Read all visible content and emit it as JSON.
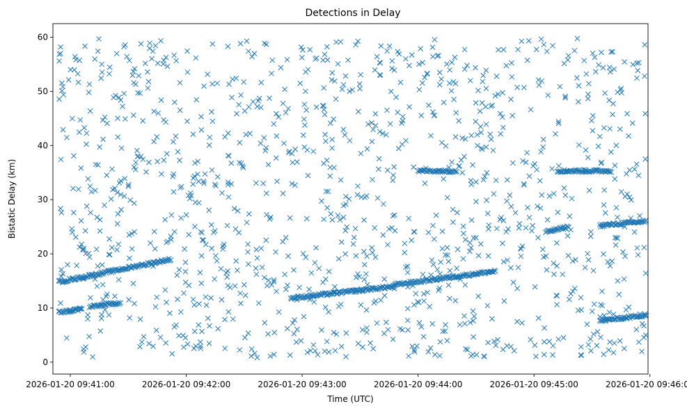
{
  "chart_data": {
    "type": "scatter",
    "title": "Detections in Delay",
    "xlabel": "Time (UTC)",
    "ylabel": "Bistatic Delay (km)",
    "marker": "x",
    "color": "#1f77b4",
    "grid": false,
    "legend": "none",
    "xlim": [
      "2026-01-20 09:40:51",
      "2026-01-20 09:45:59"
    ],
    "ylim": [
      -2.2,
      62.5
    ],
    "xticks": [
      "2026-01-20 09:41:00",
      "2026-01-20 09:42:00",
      "2026-01-20 09:43:00",
      "2026-01-20 09:44:00",
      "2026-01-20 09:45:00",
      "2026-01-20 09:46:00"
    ],
    "yticks": [
      0,
      10,
      20,
      30,
      40,
      50,
      60
    ],
    "tracks": [
      {
        "x": [
          "2026-01-20 09:40:54",
          "2026-01-20 09:41:52"
        ],
        "y": [
          14.8,
          19.0
        ]
      },
      {
        "x": [
          "2026-01-20 09:42:54",
          "2026-01-20 09:43:48"
        ],
        "y": [
          11.8,
          14.0
        ]
      },
      {
        "x": [
          "2026-01-20 09:43:48",
          "2026-01-20 09:44:40"
        ],
        "y": [
          14.3,
          16.8
        ]
      },
      {
        "x": [
          "2026-01-20 09:45:06",
          "2026-01-20 09:45:18"
        ],
        "y": [
          24.0,
          25.0
        ]
      },
      {
        "x": [
          "2026-01-20 09:45:34",
          "2026-01-20 09:45:58"
        ],
        "y": [
          25.2,
          26.0
        ]
      },
      {
        "x": [
          "2026-01-20 09:40:54",
          "2026-01-20 09:41:06"
        ],
        "y": [
          9.2,
          9.8
        ]
      },
      {
        "x": [
          "2026-01-20 09:41:10",
          "2026-01-20 09:41:26"
        ],
        "y": [
          10.2,
          11.0
        ]
      },
      {
        "x": [
          "2026-01-20 09:45:34",
          "2026-01-20 09:45:58"
        ],
        "y": [
          7.6,
          8.7
        ]
      },
      {
        "x": [
          "2026-01-20 09:44:00",
          "2026-01-20 09:44:20"
        ],
        "y": [
          35.3,
          35.3
        ]
      },
      {
        "x": [
          "2026-01-20 09:45:12",
          "2026-01-20 09:45:40"
        ],
        "y": [
          35.3,
          35.3
        ]
      }
    ]
  }
}
